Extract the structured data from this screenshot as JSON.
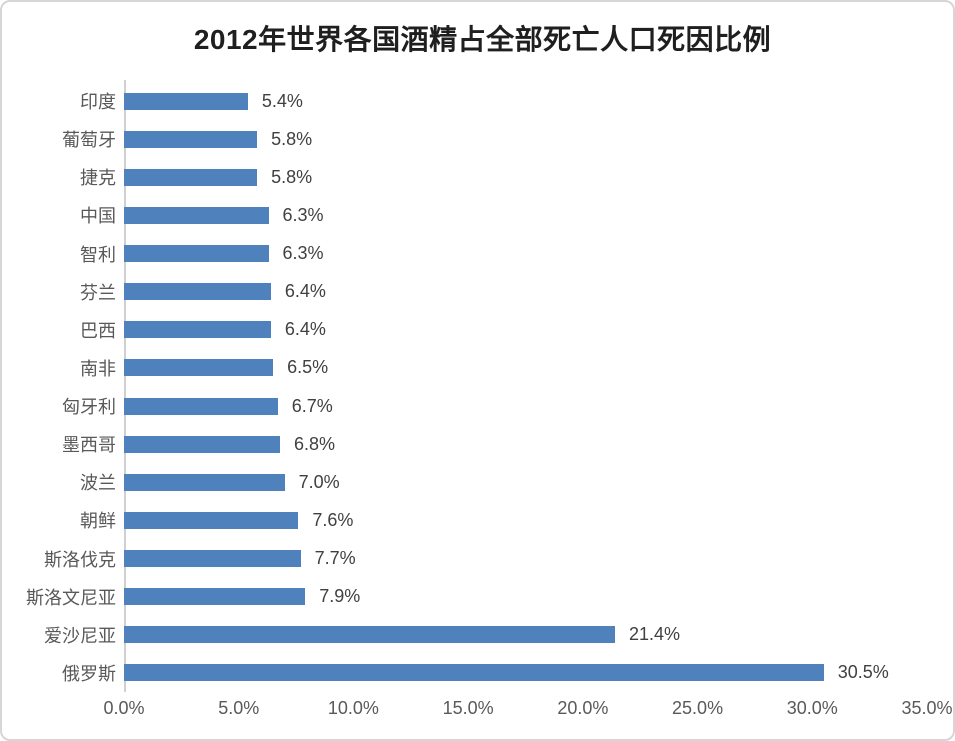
{
  "page": {
    "background": "#ffffff",
    "frame_border_color": "#d6d6d6"
  },
  "chart_data": {
    "type": "bar",
    "orientation": "horizontal",
    "title": "2012年世界各国酒精占全部死亡人口死因比例",
    "categories": [
      "印度",
      "葡萄牙",
      "捷克",
      "中国",
      "智利",
      "芬兰",
      "巴西",
      "南非",
      "匈牙利",
      "墨西哥",
      "波兰",
      "朝鲜",
      "斯洛伐克",
      "斯洛文尼亚",
      "爱沙尼亚",
      "俄罗斯"
    ],
    "values": [
      5.4,
      5.8,
      5.8,
      6.3,
      6.3,
      6.4,
      6.4,
      6.5,
      6.7,
      6.8,
      7.0,
      7.6,
      7.7,
      7.9,
      21.4,
      30.5
    ],
    "data_labels": [
      "5.4%",
      "5.8%",
      "5.8%",
      "6.3%",
      "6.3%",
      "6.4%",
      "6.4%",
      "6.5%",
      "6.7%",
      "6.8%",
      "7.0%",
      "7.6%",
      "7.7%",
      "7.9%",
      "21.4%",
      "30.5%"
    ],
    "x_ticks": [
      "0.0%",
      "5.0%",
      "10.0%",
      "15.0%",
      "20.0%",
      "25.0%",
      "30.0%",
      "35.0%"
    ],
    "xlim": [
      0,
      35
    ],
    "bar_color": "#4F81BD",
    "grid": false,
    "legend": false,
    "title_color": "#1f1f1f",
    "label_color": "#595959",
    "value_label_color": "#404040"
  }
}
